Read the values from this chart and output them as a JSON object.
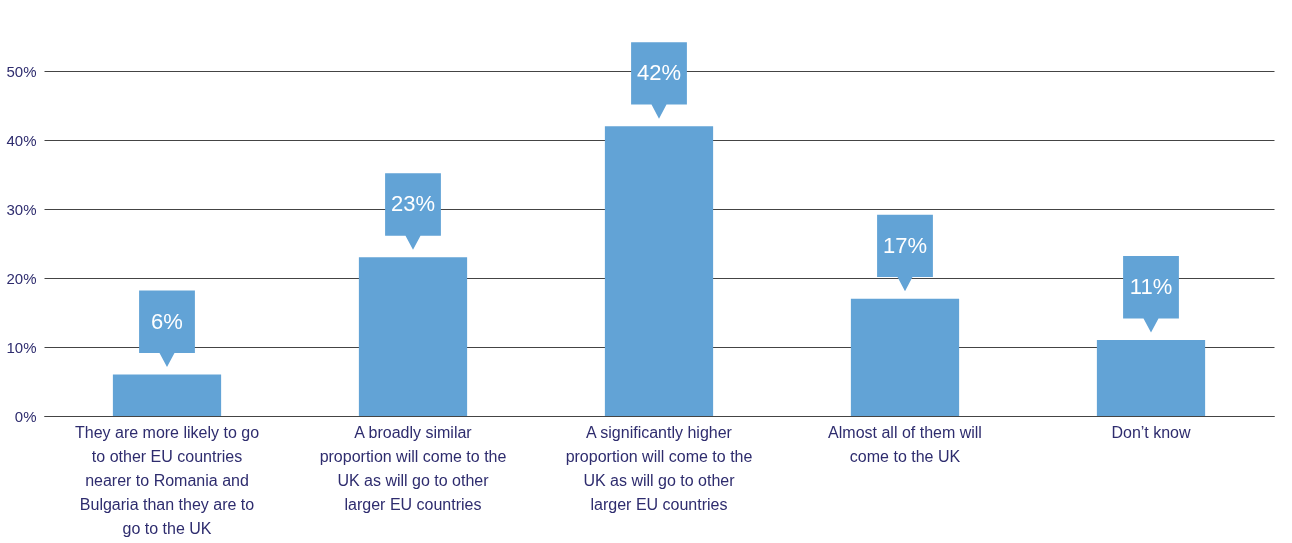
{
  "chart_data": {
    "type": "bar",
    "categories": [
      "They are more likely to go to other EU countries nearer to Romania and Bulgaria than they are to go to the UK",
      "A broadly similar proportion will come to the UK as will go to other larger EU countries",
      "A significantly higher proportion will come to the UK as will go to other larger EU countries",
      "Almost all of them will come to the UK",
      "Don’t know"
    ],
    "values": [
      6,
      23,
      42,
      17,
      11
    ],
    "value_labels": [
      "6%",
      "23%",
      "42%",
      "17%",
      "11%"
    ],
    "color": "#62a3d6",
    "ylim": [
      0,
      50
    ],
    "yticks": [
      {
        "value": 0,
        "label": "0%"
      },
      {
        "value": 10,
        "label": "10%"
      },
      {
        "value": 20,
        "label": "20%"
      },
      {
        "value": 30,
        "label": "30%"
      },
      {
        "value": 40,
        "label": "40%"
      },
      {
        "value": 50,
        "label": "50%"
      }
    ],
    "grid": "y"
  }
}
